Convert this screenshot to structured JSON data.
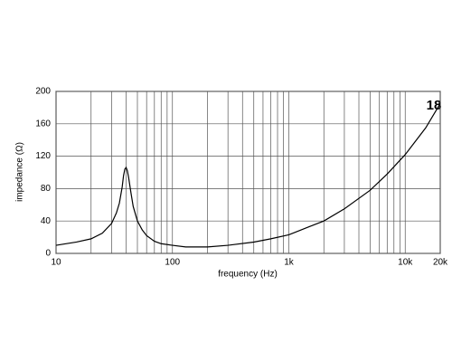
{
  "chart_data": {
    "type": "line",
    "xlabel": "frequency (Hz)",
    "ylabel": "impedance (Ω)",
    "logo": "18",
    "xscale": "log",
    "grid": true,
    "color": "#000000",
    "x": [
      10,
      15,
      20,
      25,
      30,
      33,
      35,
      37,
      38,
      39,
      40,
      41,
      42,
      44,
      46,
      50,
      55,
      60,
      70,
      80,
      100,
      130,
      160,
      200,
      300,
      500,
      700,
      1000,
      1500,
      2000,
      3000,
      5000,
      7000,
      10000,
      15000,
      20000
    ],
    "values": [
      10,
      14,
      18,
      25,
      37,
      50,
      62,
      82,
      96,
      104,
      106,
      102,
      94,
      75,
      58,
      40,
      29,
      22,
      15,
      12,
      10,
      8,
      8,
      8,
      10,
      14,
      18,
      23,
      33,
      40,
      55,
      78,
      98,
      122,
      155,
      185
    ],
    "xlim": [
      10,
      20000
    ],
    "ylim": [
      0,
      200
    ],
    "xticks": [
      10,
      100,
      {
        "value": 1000,
        "label": "1k"
      },
      {
        "value": 10000,
        "label": "10k"
      },
      {
        "value": 20000,
        "label": "20k"
      }
    ],
    "x_minor_grid": [
      20,
      30,
      40,
      50,
      60,
      70,
      80,
      90,
      200,
      300,
      400,
      500,
      600,
      700,
      800,
      900,
      2000,
      3000,
      4000,
      5000,
      6000,
      7000,
      8000,
      9000
    ],
    "yticks": [
      0,
      40,
      80,
      120,
      160,
      200
    ]
  }
}
